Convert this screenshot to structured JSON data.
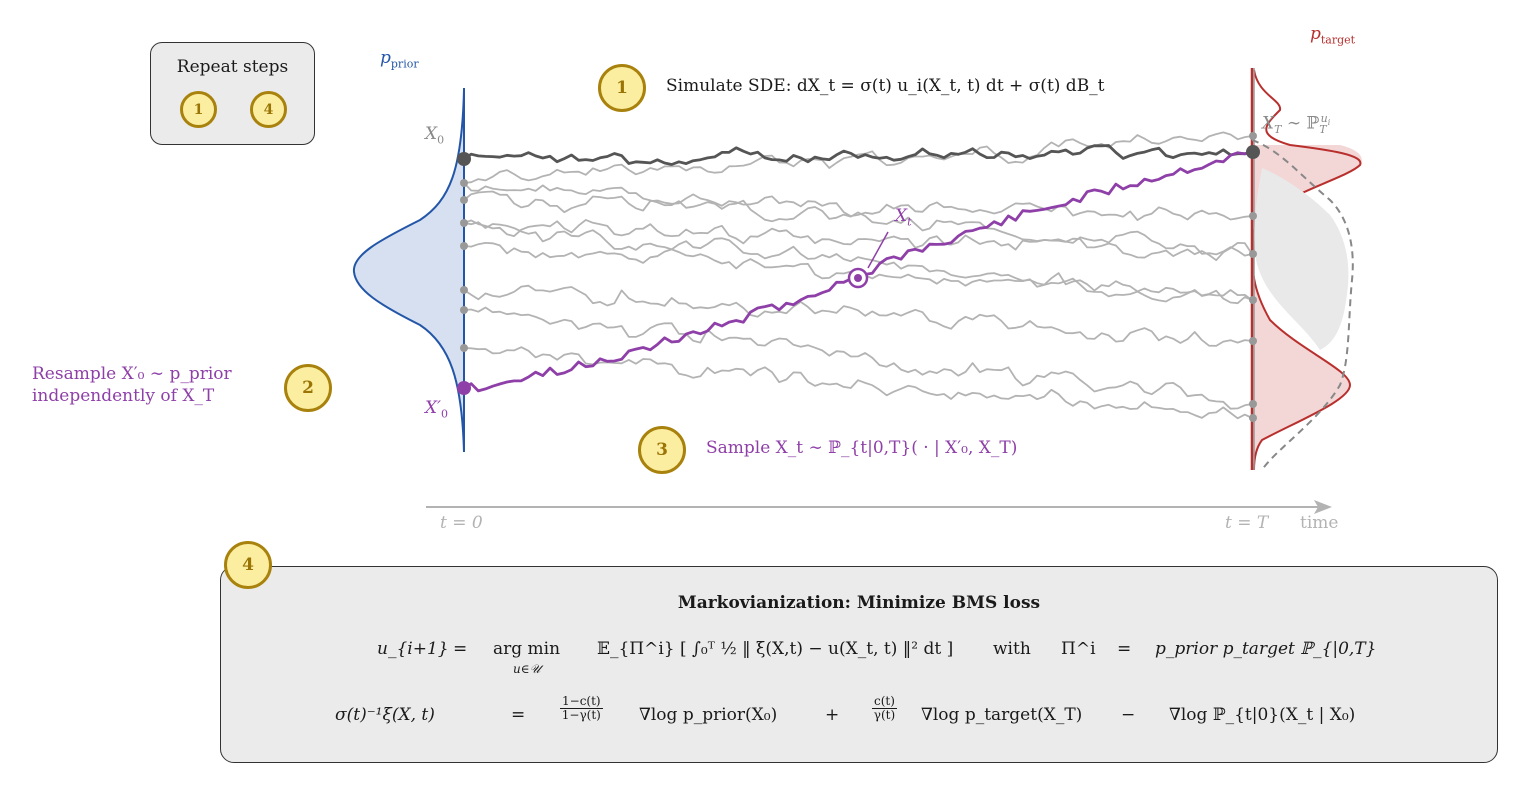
{
  "labels": {
    "repeat_steps": "Repeat steps",
    "p_prior": "p",
    "p_prior_sub": "prior",
    "p_target": "p",
    "p_target_sub": "target",
    "x0": "X",
    "x0_sub": "0",
    "x0_prime": "X′",
    "x0_prime_sub": "0",
    "xt": "X",
    "xt_sub": "t",
    "xT_dist": "X",
    "xT_dist_sub": "T",
    "xT_dist_rel": " ∼ ℙ",
    "xT_dist_sub2": "T",
    "xT_dist_sup": "u",
    "xT_dist_sup_sub": "i",
    "t0": "t = 0",
    "tT": "t = T",
    "time": "time"
  },
  "steps": {
    "step1": {
      "badge": "1",
      "text": "Simulate SDE: dX_t = σ(t) u_i(X_t, t) dt + σ(t) dB_t"
    },
    "step2": {
      "badge": "2",
      "line1": "Resample X′₀ ∼ p_prior",
      "line2": "independently of X_T"
    },
    "step3": {
      "badge": "3",
      "text": "Sample X_t ∼ ℙ_{t|0,T}( · | X′₀, X_T)"
    },
    "step4": {
      "badge": "4"
    },
    "repeat_badges": [
      "1",
      "4"
    ]
  },
  "bms": {
    "title": "Markovianization: Minimize BMS loss",
    "eq1_lhs": "u_{i+1}",
    "eq1_eq": "=",
    "eq1_argmin": "arg min",
    "eq1_argmin_sub": "u∈𝒰",
    "eq1_body": "𝔼_{Π^i} [ ∫₀ᵀ ½ ‖ ξ(X,t) − u(X_t, t) ‖² dt ]",
    "eq1_with": "with",
    "eq1_pi": "Π^i",
    "eq1_eq2": "=",
    "eq1_rhs": "p_prior p_target ℙ_{|0,T}",
    "eq2_lhs": "σ(t)⁻¹ξ(X, t)",
    "eq2_eq": "=",
    "eq2_frac1_num": "1−c(t)",
    "eq2_frac1_den": "1−γ(t)",
    "eq2_term1": "∇log p_prior(X₀)",
    "eq2_plus": "+",
    "eq2_frac2_num": "c(t)",
    "eq2_frac2_den": "γ(t)",
    "eq2_term2": "∇log p_target(X_T)",
    "eq2_minus": "−",
    "eq2_term3": "∇log ℙ_{t|0}(X_t  |  X₀)"
  },
  "colors": {
    "prior_fill": "#d6e0f0",
    "prior_line": "#2456a8",
    "target_fill": "#f3d6d6",
    "target_line": "#b8302e",
    "purple": "#8e3fa8",
    "dark_path": "#555555",
    "gray_path": "#b3b3b3",
    "badge_fill": "#fbeea0",
    "badge_border": "#a8820c"
  }
}
